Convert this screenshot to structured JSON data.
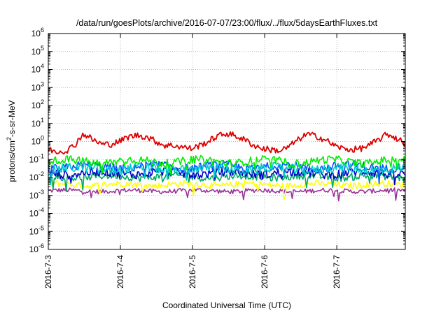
{
  "chart_data": {
    "type": "line",
    "title": "/data/run/goesPlots/archive/2016-07-07/23:00/flux/../flux/5daysEarthFluxes.txt",
    "xlabel": "Coordinated Universal Time (UTC)",
    "ylabel_base": "protons/cm",
    "ylabel_sup": "2",
    "ylabel_rest": "-s-sr-MeV",
    "x_ticks": [
      "2016-7-3",
      "2016-7-4",
      "2016-7-5",
      "2016-7-6",
      "2016-7-7"
    ],
    "x_range_days": [
      0,
      4.95
    ],
    "y_scale": "log",
    "y_range": [
      1e-06,
      1000000.0
    ],
    "y_ticks": [
      {
        "base": "10",
        "exp": "-6"
      },
      {
        "base": "10",
        "exp": "-5"
      },
      {
        "base": "10",
        "exp": "-4"
      },
      {
        "base": "10",
        "exp": "-3"
      },
      {
        "base": "10",
        "exp": "-2"
      },
      {
        "base": "10",
        "exp": "-1"
      },
      {
        "base": "10",
        "exp": "0"
      },
      {
        "base": "10",
        "exp": "1"
      },
      {
        "base": "10",
        "exp": "2"
      },
      {
        "base": "10",
        "exp": "3"
      },
      {
        "base": "10",
        "exp": "4"
      },
      {
        "base": "10",
        "exp": "5"
      },
      {
        "base": "10",
        "exp": "6"
      }
    ],
    "grid": true,
    "series": [
      {
        "color": "#dd0000",
        "base": 1.0,
        "amp": 0.9,
        "noise": 0.35,
        "profile": [
          0.35,
          0.28,
          0.3,
          0.6,
          2.5,
          1.2,
          0.7,
          0.7,
          1.0,
          1.8,
          2.2,
          1.8,
          1.0,
          0.6,
          0.6,
          0.5,
          0.4,
          0.6,
          1.0,
          2.0,
          2.8,
          2.0,
          1.2,
          0.6,
          0.4,
          0.35,
          0.3,
          0.5,
          1.2,
          2.5,
          2.0,
          1.2,
          0.6,
          0.4,
          0.35,
          0.4,
          0.6,
          1.2,
          2.5,
          1.5,
          0.7
        ]
      },
      {
        "color": "#00ee00",
        "base": 0.08,
        "amp": 0.25,
        "noise": 0.45
      },
      {
        "color": "#00cccc",
        "base": 0.03,
        "amp": 0.2,
        "noise": 0.55
      },
      {
        "color": "#0055ff",
        "base": 0.04,
        "amp": 0.25,
        "noise": 0.5
      },
      {
        "color": "#0000cc",
        "base": 0.018,
        "amp": 0.2,
        "noise": 0.5
      },
      {
        "color": "#00aa66",
        "base": 0.011,
        "amp": 0.15,
        "noise": 0.4
      },
      {
        "color": "#ffff00",
        "base": 0.004,
        "amp": 0.15,
        "noise": 0.35
      },
      {
        "color": "#993399",
        "base": 0.0018,
        "amp": 0.1,
        "noise": 0.25
      }
    ]
  }
}
